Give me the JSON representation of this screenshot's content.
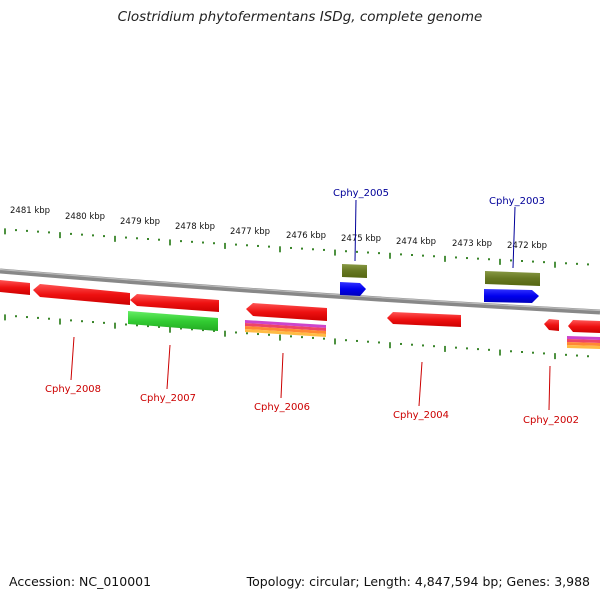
{
  "title": "Clostridium phytofermentans ISDg, complete genome",
  "footer": {
    "accession": "Accession: NC_010001",
    "info": "Topology: circular; Length: 4,847,594 bp; Genes: 3,988"
  },
  "ruler_labels": [
    "2481 kbp",
    "2480 kbp",
    "2479 kbp",
    "2478 kbp",
    "2477 kbp",
    "2476 kbp",
    "2475 kbp",
    "2474 kbp",
    "2473 kbp",
    "2472 kbp"
  ],
  "gene_labels": {
    "top": [
      "Cphy_2005",
      "Cphy_2003"
    ],
    "bottom": [
      "Cphy_2008",
      "Cphy_2007",
      "Cphy_2006",
      "Cphy_2004",
      "Cphy_2002"
    ]
  },
  "colors": {
    "cds": "#ee1111",
    "green": "#33cc33",
    "olive": "#667722",
    "blue": "#0000ee",
    "tick": "#227711",
    "backbone": "#888888",
    "label_top": "#000099",
    "label_bottom": "#cc0000"
  }
}
